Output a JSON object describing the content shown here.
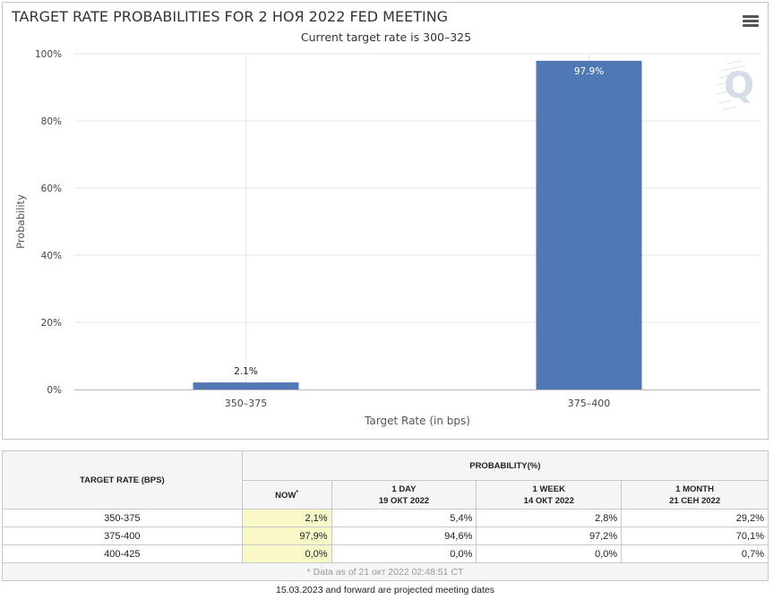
{
  "chart": {
    "title": "TARGET RATE PROBABILITIES FOR 2 НОЯ 2022 FED MEETING",
    "subtitle": "Current target rate is 300–325",
    "menu_icon": "hamburger-menu-icon",
    "watermark_icon": "q-logo-icon"
  },
  "chart_data": {
    "type": "bar",
    "categories": [
      "350–375",
      "375–400"
    ],
    "values": [
      2.1,
      97.9
    ],
    "data_labels": [
      "2.1%",
      "97.9%"
    ],
    "xlabel": "Target Rate (in bps)",
    "ylabel": "Probability",
    "ylim": [
      0,
      100
    ],
    "yticks": [
      0,
      20,
      40,
      60,
      80,
      100
    ],
    "ytick_labels": [
      "0%",
      "20%",
      "40%",
      "60%",
      "80%",
      "100%"
    ],
    "grid": true,
    "bar_color": "#5078b4"
  },
  "table": {
    "rate_header": "TARGET RATE (BPS)",
    "prob_header": "PROBABILITY(%)",
    "columns": [
      {
        "line1": "NOW",
        "line2": "",
        "sup": "*"
      },
      {
        "line1": "1 DAY",
        "line2": "19 ОКТ 2022",
        "sup": ""
      },
      {
        "line1": "1 WEEK",
        "line2": "14 ОКТ 2022",
        "sup": ""
      },
      {
        "line1": "1 MONTH",
        "line2": "21 СЕН 2022",
        "sup": ""
      }
    ],
    "rows": [
      {
        "rate": "350-375",
        "values": [
          "2,1%",
          "5,4%",
          "2,8%",
          "29,2%"
        ]
      },
      {
        "rate": "375-400",
        "values": [
          "97,9%",
          "94,6%",
          "97,2%",
          "70,1%"
        ]
      },
      {
        "rate": "400-425",
        "values": [
          "0,0%",
          "0,0%",
          "0,0%",
          "0,7%"
        ]
      }
    ],
    "note": "* Data as of 21 окт 2022 02:48:51 CT",
    "footer": "15.03.2023 and forward are projected meeting dates",
    "now_highlight_color": "#f8f8c8"
  }
}
